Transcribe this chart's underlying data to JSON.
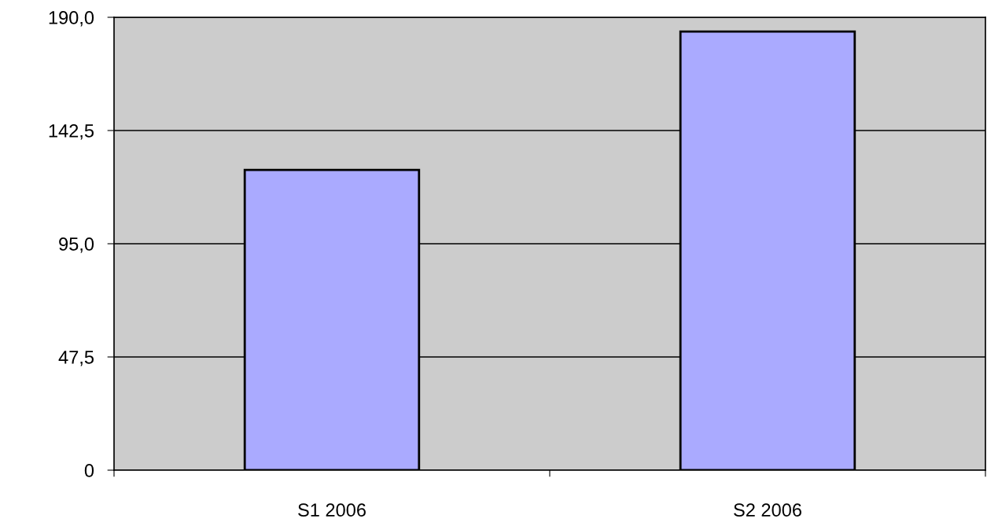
{
  "chart_data": {
    "type": "bar",
    "categories": [
      "S1 2006",
      "S2 2006"
    ],
    "values": [
      126,
      184
    ],
    "color": "#aaaaff",
    "ylim": [
      0,
      190
    ],
    "yticks": [
      0,
      {
        "value": 47.5,
        "label": "47,5"
      },
      {
        "value": 95,
        "label": "95,0"
      },
      {
        "value": 142.5,
        "label": "142,5"
      },
      {
        "value": 190,
        "label": "190,0"
      }
    ],
    "grid": "y"
  }
}
